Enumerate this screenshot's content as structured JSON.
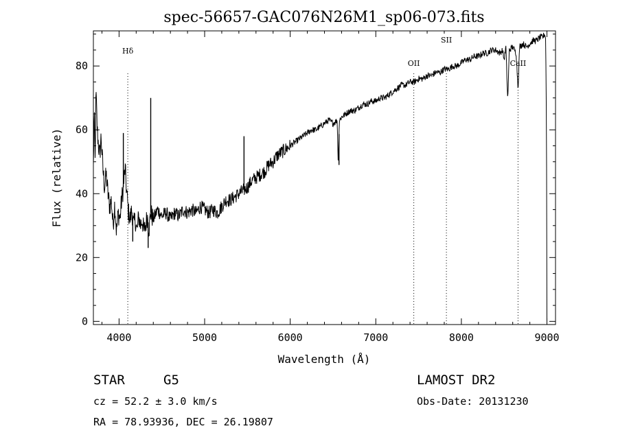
{
  "chart_data": {
    "type": "line",
    "title": "spec-56657-GAC076N26M1_sp06-073.fits",
    "xlabel": "Wavelength (Å)",
    "ylabel": "Flux (relative)",
    "xlim": [
      3700,
      9100
    ],
    "ylim": [
      -1,
      91
    ],
    "xticks": [
      4000,
      5000,
      6000,
      7000,
      8000,
      9000
    ],
    "yticks": [
      0,
      20,
      40,
      60,
      80
    ],
    "xtick_labels": [
      "4000",
      "5000",
      "6000",
      "7000",
      "8000",
      "9000"
    ],
    "ytick_labels": [
      "0",
      "20",
      "40",
      "60",
      "80"
    ],
    "grid": false,
    "series": [
      {
        "x": [
          3700,
          3710,
          3720,
          3730,
          3745,
          3760,
          3775,
          3790,
          3810,
          3830,
          3850,
          3870,
          3890,
          3910,
          3930,
          3950,
          3970,
          3990,
          4010,
          4030,
          4050,
          4070,
          4090,
          4110,
          4130,
          4150,
          4170,
          4190,
          4210,
          4230,
          4250,
          4270,
          4290,
          4310,
          4330,
          4350,
          4370,
          4400,
          4450,
          4500,
          4550,
          4600,
          4650,
          4700,
          4750,
          4800,
          4850,
          4900,
          4950,
          5000,
          5050,
          5100,
          5150,
          5200,
          5250,
          5300,
          5350,
          5400,
          5450,
          5500,
          5550,
          5600,
          5650,
          5700,
          5750,
          5800,
          5850,
          5900,
          5950,
          6000,
          6050,
          6100,
          6150,
          6200,
          6250,
          6300,
          6350,
          6400,
          6450,
          6500,
          6550,
          6560,
          6575,
          6600,
          6650,
          6700,
          6750,
          6800,
          6850,
          6900,
          6950,
          7000,
          7050,
          7100,
          7150,
          7200,
          7250,
          7300,
          7350,
          7400,
          7450,
          7500,
          7550,
          7600,
          7650,
          7700,
          7750,
          7800,
          7850,
          7900,
          7950,
          8000,
          8050,
          8100,
          8150,
          8200,
          8250,
          8300,
          8350,
          8400,
          8450,
          8480,
          8500,
          8520,
          8542,
          8560,
          8600,
          8640,
          8662,
          8680,
          8720,
          8760,
          8800,
          8840,
          8880,
          8920,
          8950,
          8970,
          8985,
          8995,
          9000
        ],
        "y": [
          48,
          65,
          50,
          72,
          60,
          55,
          52,
          58,
          48,
          42,
          46,
          40,
          36,
          38,
          30,
          37,
          28,
          34,
          32,
          38,
          42,
          48,
          40,
          34,
          32,
          35,
          30,
          32,
          28,
          33,
          30,
          32,
          28,
          30,
          33,
          29,
          34,
          32,
          35,
          33,
          34,
          32,
          34,
          33,
          35,
          34,
          35,
          34,
          36,
          35,
          34,
          35,
          34,
          36,
          38,
          38,
          39,
          40,
          41,
          42,
          44,
          45,
          46,
          47,
          49,
          50,
          52,
          53,
          54,
          55,
          56,
          57,
          58,
          59,
          60,
          60,
          61,
          62,
          63,
          62,
          63,
          50,
          63,
          64,
          65,
          66,
          66,
          67,
          68,
          68,
          69,
          69,
          70,
          70,
          71,
          72,
          73,
          74,
          74,
          75,
          75,
          76,
          76,
          77,
          77,
          78,
          78,
          79,
          79,
          80,
          80,
          81,
          82,
          82,
          83,
          83,
          84,
          84,
          85,
          85,
          84,
          85,
          82,
          86,
          69,
          85,
          86,
          84,
          73,
          86,
          87,
          86,
          87,
          88,
          88,
          89,
          89,
          90,
          89,
          60,
          0
        ],
        "spikes": [
          {
            "x": 4050,
            "y": 59
          },
          {
            "x": 4160,
            "y": 25
          },
          {
            "x": 4340,
            "y": 23
          },
          {
            "x": 4370,
            "y": 70
          },
          {
            "x": 5460,
            "y": 58
          },
          {
            "x": 6570,
            "y": 49
          }
        ]
      }
    ],
    "annotations": [
      {
        "label": "Hδ",
        "x": 4102
      },
      {
        "label": "OII",
        "x": 7444
      },
      {
        "label": "SII",
        "x": 7825
      },
      {
        "label": "CaII",
        "x": 8662
      }
    ]
  },
  "info": {
    "object_class": "STAR",
    "subclass": "G5",
    "survey": "LAMOST DR2",
    "redshift": "cz = 52.2 ± 3.0 km/s",
    "obs_date": "Obs-Date: 20131230",
    "coords": "RA =  78.93936, DEC =  26.19807"
  }
}
